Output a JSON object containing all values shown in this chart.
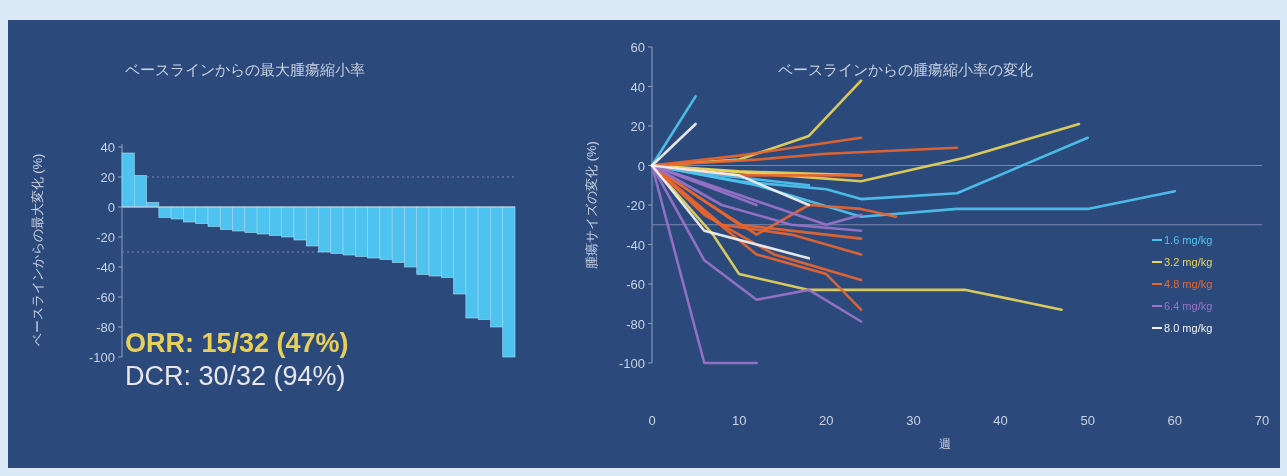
{
  "chart_data": [
    {
      "type": "bar",
      "title": "ベースラインからの最大腫瘍縮小率",
      "ylabel": "ベースラインからの最大変化 (%)",
      "categories": [
        null,
        null,
        null,
        null,
        null,
        null,
        null,
        null,
        null,
        null,
        null,
        null,
        null,
        null,
        null,
        null,
        null,
        null,
        null,
        null,
        null,
        null,
        null,
        null,
        null,
        null,
        null,
        null,
        null,
        null,
        null,
        null
      ],
      "values": [
        36,
        21,
        3,
        -7,
        -8,
        -10,
        -11,
        -13,
        -15,
        -16,
        -17,
        -18,
        -19,
        -20,
        -22,
        -26,
        -30,
        -31,
        -32,
        -33,
        -34,
        -35,
        -37,
        -40,
        -45,
        -46,
        -47,
        -58,
        -74,
        -75,
        -80,
        -100
      ],
      "color": "#4fc3f0",
      "ylim": [
        -100,
        42
      ],
      "yticks": [
        -100,
        -80,
        -60,
        -40,
        -20,
        0,
        20,
        40
      ],
      "tick_labels": "y",
      "ref_lines": [
        {
          "axis": "y",
          "value": 20,
          "line_style": "dotted"
        },
        {
          "axis": "y",
          "value": -30,
          "line_style": "dotted"
        }
      ],
      "annotations": [
        "ORR: 15/32 (47%)",
        "DCR: 30/32 (94%)"
      ]
    },
    {
      "type": "line",
      "title": "ベースラインからの腫瘍縮小率の変化",
      "xlabel": "週",
      "ylabel": "腫瘍サイズの変化 (%)",
      "xlim": [
        0,
        70
      ],
      "xticks": [
        0,
        10,
        20,
        30,
        40,
        50,
        60,
        70
      ],
      "ylim": [
        -100,
        60
      ],
      "yticks": [
        -100,
        -80,
        -60,
        -40,
        -20,
        0,
        20,
        40,
        60
      ],
      "legend": "bottom right",
      "ref_lines": [
        {
          "axis": "y",
          "value": 0
        },
        {
          "axis": "y",
          "value": -30
        }
      ],
      "series": [
        {
          "name": "1.6 mg/kg",
          "color": "#4fc3f0",
          "x": [
            0,
            5
          ],
          "values": [
            0,
            35
          ]
        },
        {
          "color": "#4fc3f0",
          "x": [
            0,
            10,
            20,
            24,
            35,
            50
          ],
          "values": [
            0,
            -8,
            -12,
            -17,
            -14,
            14
          ]
        },
        {
          "color": "#4fc3f0",
          "x": [
            0,
            12,
            24,
            35,
            50,
            60
          ],
          "values": [
            0,
            -10,
            -26,
            -22,
            -22,
            -13
          ]
        },
        {
          "color": "#4fc3f0",
          "x": [
            0,
            8,
            18
          ],
          "values": [
            0,
            -5,
            -10
          ]
        },
        {
          "name": "3.2 mg/kg",
          "color": "#e8d45a",
          "x": [
            0,
            10,
            18,
            24
          ],
          "values": [
            0,
            3,
            15,
            43
          ]
        },
        {
          "color": "#e8d45a",
          "x": [
            0,
            15,
            24,
            36,
            49
          ],
          "values": [
            0,
            -5,
            -8,
            4,
            21
          ]
        },
        {
          "color": "#e8d45a",
          "x": [
            0,
            7,
            10,
            18,
            36,
            47
          ],
          "values": [
            0,
            -35,
            -55,
            -63,
            -63,
            -73
          ]
        },
        {
          "color": "#e8d45a",
          "x": [
            0,
            10,
            24
          ],
          "values": [
            0,
            -3,
            -5
          ]
        },
        {
          "name": "4.8 mg/kg",
          "color": "#e8652e",
          "x": [
            0,
            10,
            24
          ],
          "values": [
            0,
            5,
            14
          ]
        },
        {
          "color": "#e8652e",
          "x": [
            0,
            12,
            20,
            35
          ],
          "values": [
            0,
            3,
            6,
            9
          ]
        },
        {
          "color": "#e8652e",
          "x": [
            0,
            10,
            24
          ],
          "values": [
            0,
            -5,
            -5
          ]
        },
        {
          "color": "#e8652e",
          "x": [
            0,
            5,
            12,
            18,
            24,
            28
          ],
          "values": [
            0,
            -15,
            -35,
            -20,
            -22,
            -26
          ]
        },
        {
          "color": "#e8652e",
          "x": [
            0,
            5,
            12,
            20,
            24
          ],
          "values": [
            0,
            -20,
            -45,
            -55,
            -73
          ]
        },
        {
          "color": "#e8652e",
          "x": [
            0,
            8,
            16,
            24
          ],
          "values": [
            0,
            -30,
            -35,
            -45
          ]
        },
        {
          "color": "#e8652e",
          "x": [
            0,
            6,
            14,
            24
          ],
          "values": [
            0,
            -25,
            -45,
            -58
          ]
        },
        {
          "color": "#e8652e",
          "x": [
            0,
            10,
            24
          ],
          "values": [
            0,
            -30,
            -37
          ]
        },
        {
          "name": "6.4 mg/kg",
          "color": "#9a72c9",
          "x": [
            0,
            6,
            12
          ],
          "values": [
            0,
            -100,
            -100
          ]
        },
        {
          "color": "#9a72c9",
          "x": [
            0,
            6,
            12,
            18,
            24
          ],
          "values": [
            0,
            -48,
            -68,
            -63,
            -79
          ]
        },
        {
          "color": "#9a72c9",
          "x": [
            0,
            8,
            16,
            24
          ],
          "values": [
            0,
            -20,
            -30,
            -33
          ]
        },
        {
          "color": "#9a72c9",
          "x": [
            0,
            10,
            20,
            24
          ],
          "values": [
            0,
            -15,
            -30,
            -25
          ]
        },
        {
          "color": "#9a72c9",
          "x": [
            0,
            6,
            12
          ],
          "values": [
            0,
            -10,
            -20
          ]
        },
        {
          "name": "8.0 mg/kg",
          "color": "#f2f2f2",
          "x": [
            0,
            5
          ],
          "values": [
            0,
            21
          ]
        },
        {
          "color": "#f2f2f2",
          "x": [
            0,
            10,
            18
          ],
          "values": [
            0,
            -5,
            -20
          ]
        },
        {
          "color": "#f2f2f2",
          "x": [
            0,
            6,
            12,
            18
          ],
          "values": [
            0,
            -33,
            -40,
            -47
          ]
        }
      ]
    }
  ]
}
